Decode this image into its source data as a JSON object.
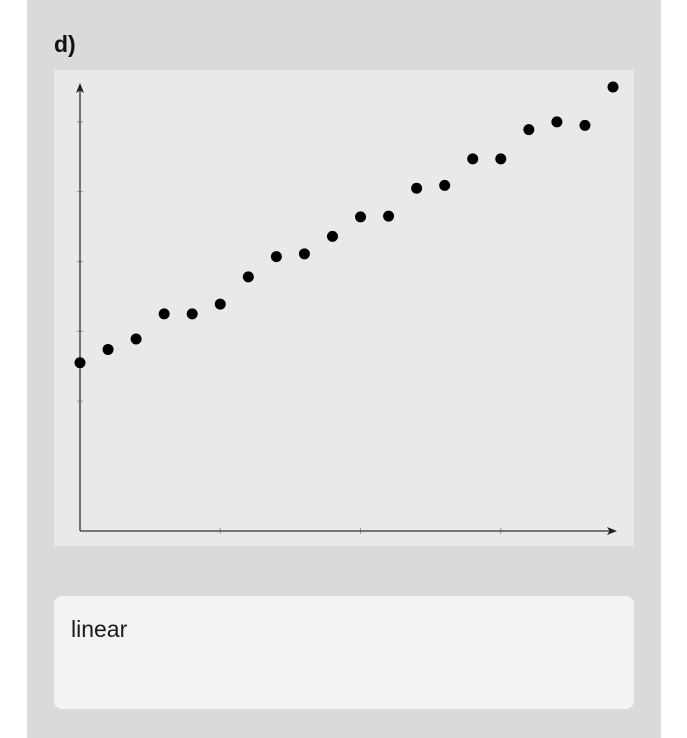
{
  "problem": {
    "label": "d)"
  },
  "chart_data": {
    "type": "scatter",
    "title": "",
    "xlabel": "",
    "ylabel": "",
    "xlim": [
      0,
      19
    ],
    "ylim": [
      0,
      5
    ],
    "x_ticks": [
      0,
      5,
      10,
      15
    ],
    "y_ticks": [
      0.5,
      1.5,
      2.5,
      3.5,
      4.5
    ],
    "tick_labels_shown": false,
    "grid": false,
    "legend": "none",
    "point_color": "#000000",
    "series": [
      {
        "points": [
          [
            0,
            1.05
          ],
          [
            1,
            1.24
          ],
          [
            2,
            1.39
          ],
          [
            3,
            1.75
          ],
          [
            4,
            1.75
          ],
          [
            5,
            1.89
          ],
          [
            6,
            2.28
          ],
          [
            7,
            2.57
          ],
          [
            8,
            2.61
          ],
          [
            9,
            2.86
          ],
          [
            10,
            3.14
          ],
          [
            11,
            3.15
          ],
          [
            12,
            3.55
          ],
          [
            13,
            3.59
          ],
          [
            14,
            3.97
          ],
          [
            15,
            3.97
          ],
          [
            16,
            4.39
          ],
          [
            17,
            4.5
          ],
          [
            18,
            4.45
          ],
          [
            19,
            5.0
          ]
        ]
      }
    ]
  },
  "answer": {
    "text": "linear"
  }
}
